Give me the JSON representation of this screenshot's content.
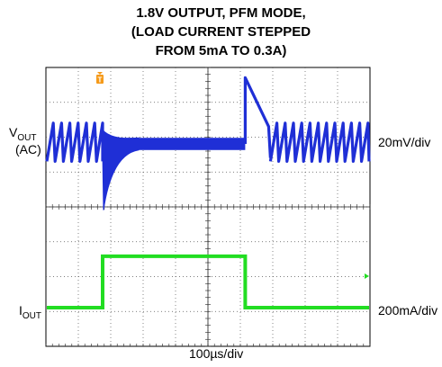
{
  "chart_data": {
    "type": "line",
    "title_lines": [
      "1.8V OUTPUT, PFM MODE,",
      "(LOAD CURRENT STEPPED",
      "FROM 5mA TO 0.3A)"
    ],
    "xlabel": "100µs/div",
    "x_unit": "µs",
    "x_range": [
      0,
      1000
    ],
    "grid": true,
    "channels": [
      {
        "name": "V_OUT (AC)",
        "label_main": "V",
        "label_sub": "OUT",
        "label_extra": "(AC)",
        "scale": "20mV/div",
        "unit": "mV",
        "color": "#1f2fd6",
        "description": "sawtooth ripple of about 20mV at light load; at the step to 0.3A the output dips about 38mV then recovers; at the step back to 5mA it overshoots about 38mV then returns to sawtooth ripple",
        "points": [
          [
            0,
            10
          ],
          [
            175,
            10
          ],
          [
            175,
            -38
          ],
          [
            190,
            -10
          ],
          [
            220,
            -2
          ],
          [
            280,
            0
          ],
          [
            615,
            0
          ],
          [
            615,
            38
          ],
          [
            700,
            10
          ],
          [
            1000,
            10
          ]
        ]
      },
      {
        "name": "I_OUT",
        "label_main": "I",
        "label_sub": "OUT",
        "scale": "200mA/div",
        "unit": "A",
        "color": "#22dd22",
        "points": [
          [
            0,
            0.005
          ],
          [
            175,
            0.005
          ],
          [
            175,
            0.3
          ],
          [
            615,
            0.3
          ],
          [
            615,
            0.005
          ],
          [
            1000,
            0.005
          ]
        ]
      }
    ],
    "steps": [
      {
        "t": 175,
        "from": "5mA",
        "to": "0.3A"
      },
      {
        "t": 615,
        "from": "0.3A",
        "to": "5mA"
      }
    ],
    "trigger_marker": "T"
  }
}
